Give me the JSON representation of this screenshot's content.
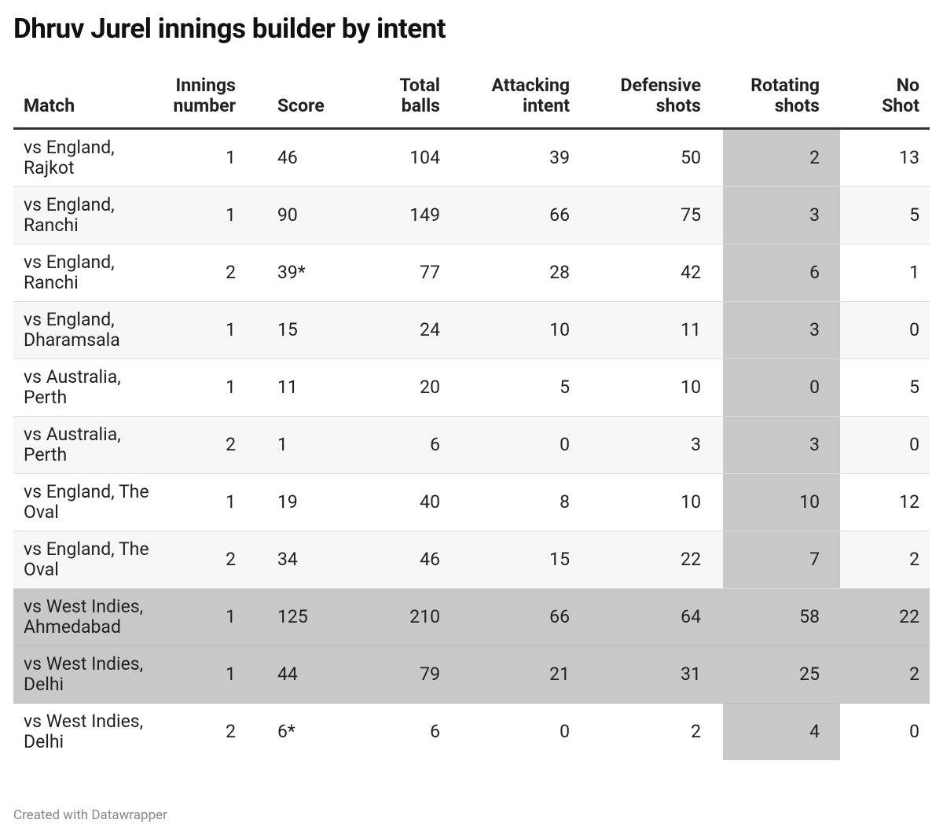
{
  "title": "Dhruv Jurel innings builder by intent",
  "table": {
    "header": [
      "Match",
      "Innings number",
      "Score",
      "Total balls",
      "Attacking intent",
      "Defensive shots",
      "Rotating shots",
      "No Shot"
    ],
    "rows": [
      [
        "vs England, Rajkot",
        1,
        46,
        104,
        39,
        50,
        2,
        13
      ],
      [
        "vs England, Ranchi",
        1,
        90,
        149,
        66,
        75,
        3,
        5
      ],
      [
        "vs England, Ranchi",
        2,
        "39*",
        77,
        28,
        42,
        6,
        1
      ],
      [
        "vs England, Dharamsala",
        1,
        15,
        24,
        10,
        11,
        3,
        0
      ],
      [
        "vs Australia, Perth",
        1,
        11,
        20,
        5,
        10,
        0,
        5
      ],
      [
        "vs Australia, Perth",
        2,
        1,
        6,
        0,
        3,
        3,
        0
      ],
      [
        "vs England, The Oval",
        1,
        19,
        40,
        8,
        10,
        10,
        12
      ],
      [
        "vs England, The Oval",
        2,
        34,
        46,
        15,
        22,
        7,
        2
      ],
      [
        "vs West Indies, Ahmedabad",
        1,
        125,
        210,
        66,
        64,
        58,
        22
      ],
      [
        "vs West Indies, Delhi",
        1,
        44,
        79,
        21,
        31,
        25,
        2
      ],
      [
        "vs West Indies, Delhi",
        2,
        "6*",
        6,
        0,
        2,
        4,
        0
      ]
    ]
  },
  "footer": "Created with Datawrapper"
}
